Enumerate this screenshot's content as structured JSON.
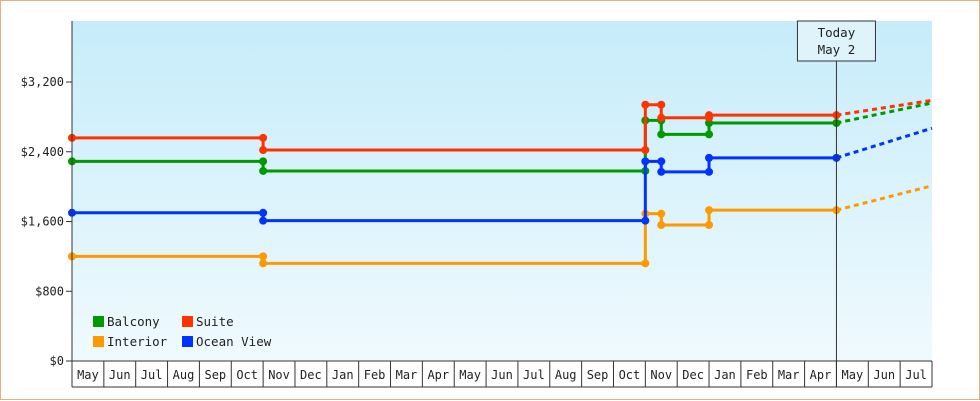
{
  "chart_data": {
    "type": "line",
    "style": "step",
    "title": "",
    "xlabel": "",
    "ylabel": "",
    "ylim": [
      0,
      3900
    ],
    "yticks": [
      0,
      800,
      1600,
      2400,
      3200
    ],
    "ytick_labels": [
      "$0",
      "$800",
      "$1,600",
      "$2,400",
      "$3,200"
    ],
    "month_labels": [
      "May",
      "Jun",
      "Jul",
      "Aug",
      "Sep",
      "Oct",
      "Nov",
      "Dec",
      "Jan",
      "Feb",
      "Mar",
      "Apr",
      "May",
      "Jun",
      "Jul",
      "Aug",
      "Sep",
      "Oct",
      "Nov",
      "Dec",
      "Jan",
      "Feb",
      "Mar",
      "Apr",
      "May",
      "Jun",
      "Jul"
    ],
    "today": {
      "label": "Today",
      "date": "May 2",
      "month_index": 24.0
    },
    "legend": {
      "position": "bottom-left"
    },
    "series": [
      {
        "name": "Balcony",
        "color": "#009900",
        "segments": [
          [
            0.0,
            6.0,
            2290
          ],
          [
            6.0,
            18.0,
            2180
          ],
          [
            18.0,
            18.5,
            2760
          ],
          [
            18.5,
            20.0,
            2600
          ],
          [
            20.0,
            24.0,
            2730
          ]
        ],
        "forecast": [
          24.0,
          2730,
          27.0,
          2960
        ]
      },
      {
        "name": "Suite",
        "color": "#ff3300",
        "segments": [
          [
            0.0,
            6.0,
            2560
          ],
          [
            6.0,
            18.0,
            2420
          ],
          [
            18.0,
            18.5,
            2940
          ],
          [
            18.5,
            20.0,
            2790
          ],
          [
            20.0,
            24.0,
            2820
          ]
        ],
        "forecast": [
          24.0,
          2820,
          27.0,
          2990
        ]
      },
      {
        "name": "Interior",
        "color": "#ff9900",
        "segments": [
          [
            0.0,
            6.0,
            1200
          ],
          [
            6.0,
            18.0,
            1120
          ],
          [
            18.0,
            18.5,
            1690
          ],
          [
            18.5,
            20.0,
            1560
          ],
          [
            20.0,
            24.0,
            1730
          ]
        ],
        "forecast": [
          24.0,
          1730,
          27.0,
          2010
        ]
      },
      {
        "name": "Ocean View",
        "color": "#0033ff",
        "segments": [
          [
            0.0,
            6.0,
            1700
          ],
          [
            6.0,
            18.0,
            1610
          ],
          [
            18.0,
            18.5,
            2290
          ],
          [
            18.5,
            20.0,
            2170
          ],
          [
            20.0,
            24.0,
            2330
          ]
        ],
        "forecast": [
          24.0,
          2330,
          27.0,
          2670
        ]
      }
    ]
  }
}
